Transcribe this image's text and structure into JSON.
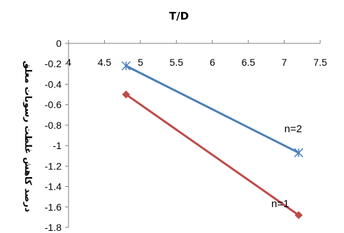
{
  "chart_data": {
    "type": "line",
    "title": "T/D",
    "xlabel": "",
    "ylabel": "درصد کاهش غلظت رسوبات معلق",
    "xlim": [
      4,
      7.5
    ],
    "ylim": [
      -1.8,
      0
    ],
    "x_axis_position": "top",
    "x_ticks": [
      "4",
      "4.5",
      "5",
      "5.5",
      "6",
      "6.5",
      "7",
      "7.5"
    ],
    "y_ticks": [
      "0",
      "-0.2",
      "-0.4",
      "-0.6",
      "-0.8",
      "-1",
      "-1.2",
      "-1.4",
      "-1.6",
      "-1.8"
    ],
    "grid": false,
    "series": [
      {
        "name": "n=2",
        "x": [
          4.8,
          7.2
        ],
        "y": [
          -0.22,
          -1.07
        ],
        "color": "#4a7ebb",
        "marker": "star"
      },
      {
        "name": "n=1",
        "x": [
          4.8,
          7.2
        ],
        "y": [
          -0.5,
          -1.68
        ],
        "color": "#be4b48",
        "marker": "diamond"
      }
    ],
    "annotations": [
      {
        "text": "n=2",
        "x": 7.0,
        "y": -0.87
      },
      {
        "text": "n=1",
        "x": 6.82,
        "y": -1.6
      }
    ]
  }
}
